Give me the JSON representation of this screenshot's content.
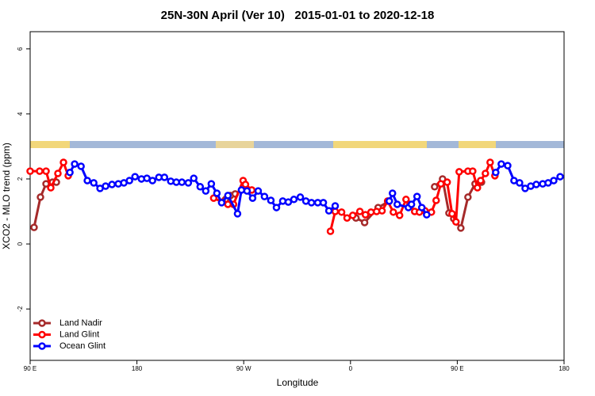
{
  "chart_data": {
    "type": "line",
    "title": "25N-30N April (Ver 10)   2015-01-01 to 2020-12-18",
    "xlabel": "Longitude",
    "ylabel": "XCO2 - MLO trend (ppm)",
    "xlim": [
      90,
      540
    ],
    "ylim": [
      -3.58,
      6.53
    ],
    "xticks": [
      {
        "value": 90,
        "label": "90 E"
      },
      180,
      {
        "value": 270,
        "label": "90 W"
      },
      {
        "value": 360,
        "label": "0"
      },
      {
        "value": 450,
        "label": "90 E"
      },
      {
        "value": 540,
        "label": "180"
      }
    ],
    "yticks": [
      -2,
      0,
      2,
      4,
      6
    ],
    "legend": "bottom-left",
    "series": [
      {
        "name": "Land Nadir",
        "color": "#a52a2a",
        "x": [
          93.3,
          98.7,
          103.4,
          108.8,
          112.1,
          null,
          254.7,
          258.8,
          262.8,
          null,
          364.6,
          371.9,
          383.3,
          392.7,
          null,
          430.9,
          437.6,
          443.0,
          447.0,
          453.0,
          459.0,
          465.0,
          470.4
        ],
        "values": [
          0.51,
          1.44,
          1.85,
          1.9,
          1.9,
          null,
          1.37,
          1.49,
          1.54,
          null,
          0.8,
          0.66,
          1.12,
          1.32,
          null,
          1.76,
          2.0,
          0.95,
          0.78,
          0.49,
          1.44,
          1.85,
          1.9
        ]
      },
      {
        "name": "Land Glint",
        "color": "#ff0000",
        "x": [
          90,
          98,
          103.4,
          107.4,
          113.4,
          118.1,
          122.1,
          null,
          244.7,
          252.1,
          256.7,
          261.4,
          269.5,
          271.5,
          276.8,
          null,
          343.1,
          347.1,
          352.5,
          357.1,
          361.9,
          367.9,
          372.6,
          377.3,
          382.0,
          386.6,
          391.3,
          396.1,
          401.4,
          406.8,
          410.1,
          414.1,
          418.1,
          422.8,
          428.2,
          432.2,
          436.2,
          441.5,
          445.6,
          448.9,
          451.6,
          459.0,
          463.0,
          467.0,
          469.7,
          473.7,
          477.7,
          481.7
        ],
        "values": [
          2.24,
          2.24,
          2.24,
          1.73,
          2.17,
          2.51,
          2.1,
          null,
          1.41,
          1.29,
          1.22,
          1.22,
          1.95,
          1.83,
          1.66,
          null,
          0.39,
          1.0,
          0.98,
          0.8,
          0.88,
          1.0,
          0.9,
          0.98,
          1.0,
          1.02,
          1.32,
          0.98,
          0.88,
          1.37,
          1.22,
          1.0,
          0.98,
          1.02,
          0.98,
          1.34,
          1.85,
          1.9,
          0.93,
          0.68,
          2.22,
          2.24,
          2.24,
          1.73,
          1.95,
          2.17,
          2.51,
          2.1
        ]
      },
      {
        "name": "Ocean Glint",
        "color": "#0000ff",
        "x": [
          123.5,
          127.5,
          132.9,
          138.2,
          143.6,
          148.9,
          153.6,
          159.0,
          164.3,
          169.0,
          173.7,
          178.4,
          183.8,
          188.4,
          193.1,
          198.5,
          203.2,
          208.5,
          213.2,
          217.9,
          223.3,
          227.9,
          233.3,
          238.0,
          242.7,
          247.4,
          251.4,
          256.7,
          264.8,
          268.1,
          272.8,
          277.5,
          282.2,
          287.5,
          292.9,
          297.6,
          302.9,
          307.6,
          312.3,
          317.7,
          322.4,
          327.1,
          332.4,
          337.1,
          341.8,
          347.1,
          null,
          392.7,
          395.4,
          399.4,
          408.8,
          411.4,
          416.1,
          420.1,
          424.2,
          null,
          482.4,
          487.1,
          492.5,
          497.8,
          502.5,
          507.2,
          511.9,
          516.6,
          522.0,
          526.6,
          531.3,
          536.7
        ],
        "values": [
          2.2,
          2.46,
          2.39,
          1.95,
          1.88,
          1.71,
          1.78,
          1.83,
          1.85,
          1.88,
          1.95,
          2.07,
          2.0,
          2.02,
          1.95,
          2.05,
          2.05,
          1.93,
          1.9,
          1.9,
          1.88,
          2.02,
          1.76,
          1.63,
          1.85,
          1.56,
          1.27,
          1.49,
          0.93,
          1.66,
          1.63,
          1.41,
          1.63,
          1.46,
          1.34,
          1.12,
          1.32,
          1.29,
          1.37,
          1.44,
          1.32,
          1.27,
          1.27,
          1.27,
          1.02,
          1.17,
          null,
          1.32,
          1.56,
          1.22,
          1.12,
          1.22,
          1.46,
          1.12,
          0.9,
          null,
          2.2,
          2.46,
          2.41,
          1.95,
          1.88,
          1.71,
          1.78,
          1.83,
          1.85,
          1.88,
          1.95,
          2.07
        ]
      }
    ]
  }
}
